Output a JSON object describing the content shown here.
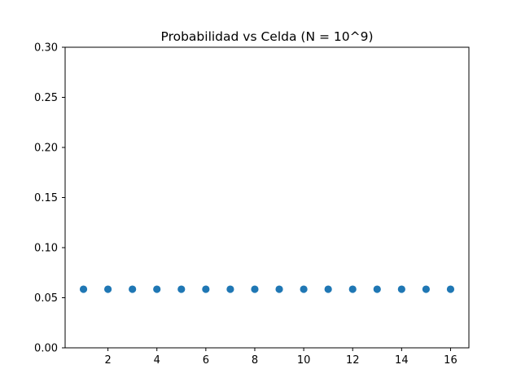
{
  "chart_data": {
    "type": "scatter",
    "title": "Probabilidad vs Celda (N = 10^9)",
    "xlabel": "",
    "ylabel": "",
    "xlim": [
      0.25,
      16.75
    ],
    "ylim": [
      0,
      0.3
    ],
    "x_ticks": [
      2,
      4,
      6,
      8,
      10,
      12,
      14,
      16
    ],
    "y_ticks": [
      0.0,
      0.05,
      0.1,
      0.15,
      0.2,
      0.25,
      0.3
    ],
    "y_tick_labels": [
      "0.00",
      "0.05",
      "0.10",
      "0.15",
      "0.20",
      "0.25",
      "0.30"
    ],
    "grid": false,
    "series": [
      {
        "color": "#1f77b4",
        "x": [
          1,
          2,
          3,
          4,
          5,
          6,
          7,
          8,
          9,
          10,
          11,
          12,
          13,
          14,
          15,
          16
        ],
        "y": [
          0.0585,
          0.0585,
          0.0585,
          0.0585,
          0.0585,
          0.0585,
          0.0585,
          0.0585,
          0.0585,
          0.0585,
          0.0585,
          0.0585,
          0.0585,
          0.0585,
          0.0585,
          0.0585
        ]
      }
    ]
  }
}
